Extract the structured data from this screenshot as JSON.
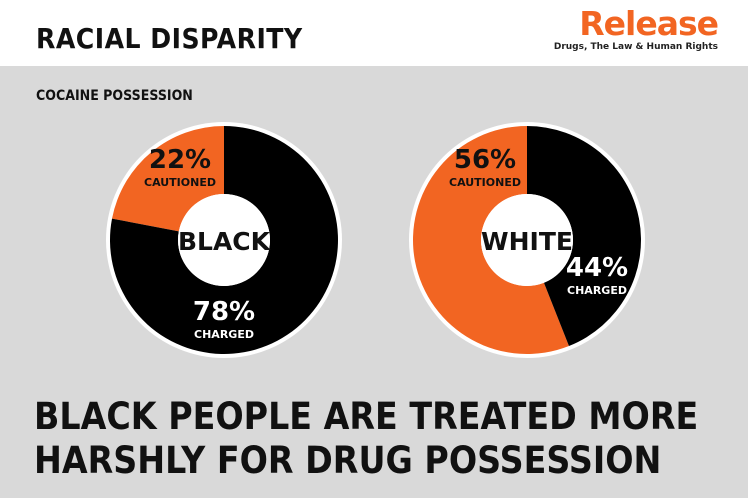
{
  "header": {
    "title": "RACIAL DISPARITY"
  },
  "logo": {
    "name": "Release",
    "tagline": "Drugs, The Law & Human Rights"
  },
  "subtitle": "COCAINE POSSESSION",
  "colors": {
    "orange": "#f26522",
    "black": "#000000",
    "ring_outline": "#ffffff",
    "background": "#d9d9d9"
  },
  "chart_data": [
    {
      "type": "pie",
      "title": "BLACK",
      "series": [
        {
          "name": "CAUTIONED",
          "value": 22,
          "label": "22%"
        },
        {
          "name": "CHARGED",
          "value": 78,
          "label": "78%"
        }
      ]
    },
    {
      "type": "pie",
      "title": "WHITE",
      "series": [
        {
          "name": "CAUTIONED",
          "value": 56,
          "label": "56%"
        },
        {
          "name": "CHARGED",
          "value": 44,
          "label": "44%"
        }
      ]
    }
  ],
  "headline": {
    "line1": "BLACK PEOPLE ARE TREATED MORE",
    "line2": "HARSHLY FOR DRUG POSSESSION"
  }
}
